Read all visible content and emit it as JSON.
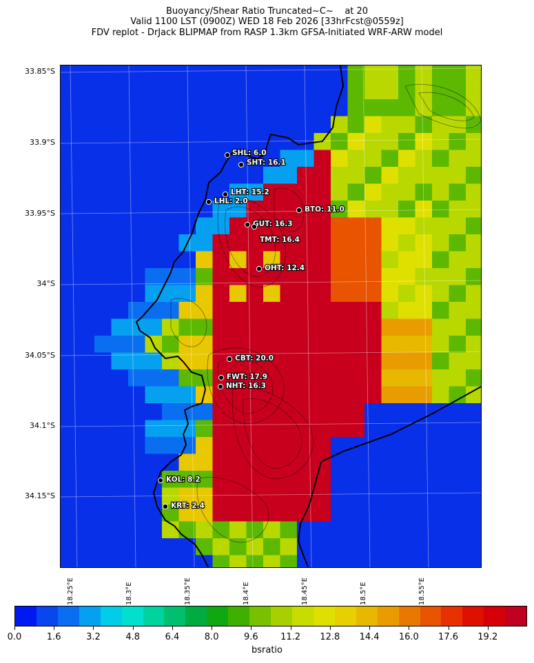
{
  "title": {
    "line1": "Buoyancy/Shear Ratio Truncated~C~    at 20",
    "line2": "Valid 1100 LST (0900Z) WED 18 Feb 2026 [33hrFcst@0559z]",
    "line3": "FDV replot - DrJack BLIPMAP from RASP 1.3km GFSA-Initiated WRF-ARW model"
  },
  "axes": {
    "lat_labels": [
      "33.85°S",
      "33.9°S",
      "33.95°S",
      "34°S",
      "34.05°S",
      "34.1°S",
      "34.15°S"
    ],
    "lon_labels": [
      "18.25°E",
      "18.3°E",
      "18.35°E",
      "18.4°E",
      "18.45°E",
      "18.5°E",
      "18.55°E"
    ]
  },
  "stations": [
    {
      "name": "SHL",
      "value": "SHL: 6.0"
    },
    {
      "name": "SHT",
      "value": "SHT: 16.1"
    },
    {
      "name": "LHT",
      "value": "LHT: 15.2"
    },
    {
      "name": "LHL",
      "value": "LHL: 2.0"
    },
    {
      "name": "BTO",
      "value": "BTO: 11.0"
    },
    {
      "name": "GUT",
      "value": "GUT: 16.3"
    },
    {
      "name": "TMT",
      "value": "TMT: 16.4"
    },
    {
      "name": "OHT",
      "value": "OHT: 12.4"
    },
    {
      "name": "CBT",
      "value": "CBT: 20.0"
    },
    {
      "name": "FWT",
      "value": "FWT: 17.9"
    },
    {
      "name": "NHT",
      "value": "NHT: 16.3"
    },
    {
      "name": "KOL",
      "value": "KOL: 8.2"
    },
    {
      "name": "KRT",
      "value": "KRT: 2.4"
    }
  ],
  "colorbar": {
    "label": "bsratio",
    "ticks": [
      "0.0",
      "1.6",
      "3.2",
      "4.8",
      "6.4",
      "8.0",
      "9.6",
      "11.2",
      "12.8",
      "14.4",
      "16.0",
      "17.6",
      "19.2"
    ],
    "colors": [
      "#0019f0",
      "#0a46ee",
      "#0a6ef0",
      "#05a0f0",
      "#00cde8",
      "#00e0cc",
      "#00d2a0",
      "#00c070",
      "#00ac40",
      "#10a810",
      "#40b000",
      "#78c000",
      "#a8d000",
      "#c8dc00",
      "#e0e000",
      "#e8d000",
      "#e8b800",
      "#e89c00",
      "#e87800",
      "#e85400",
      "#e83000",
      "#e01000",
      "#d80008",
      "#c00020"
    ],
    "min": 0,
    "max": 20.8
  },
  "map": {
    "land_colors": {
      "ocean": "#0830e8",
      "high": "#c8001e",
      "mid": "#e8c800",
      "green": "#5cb800",
      "lime": "#b8d800"
    }
  }
}
